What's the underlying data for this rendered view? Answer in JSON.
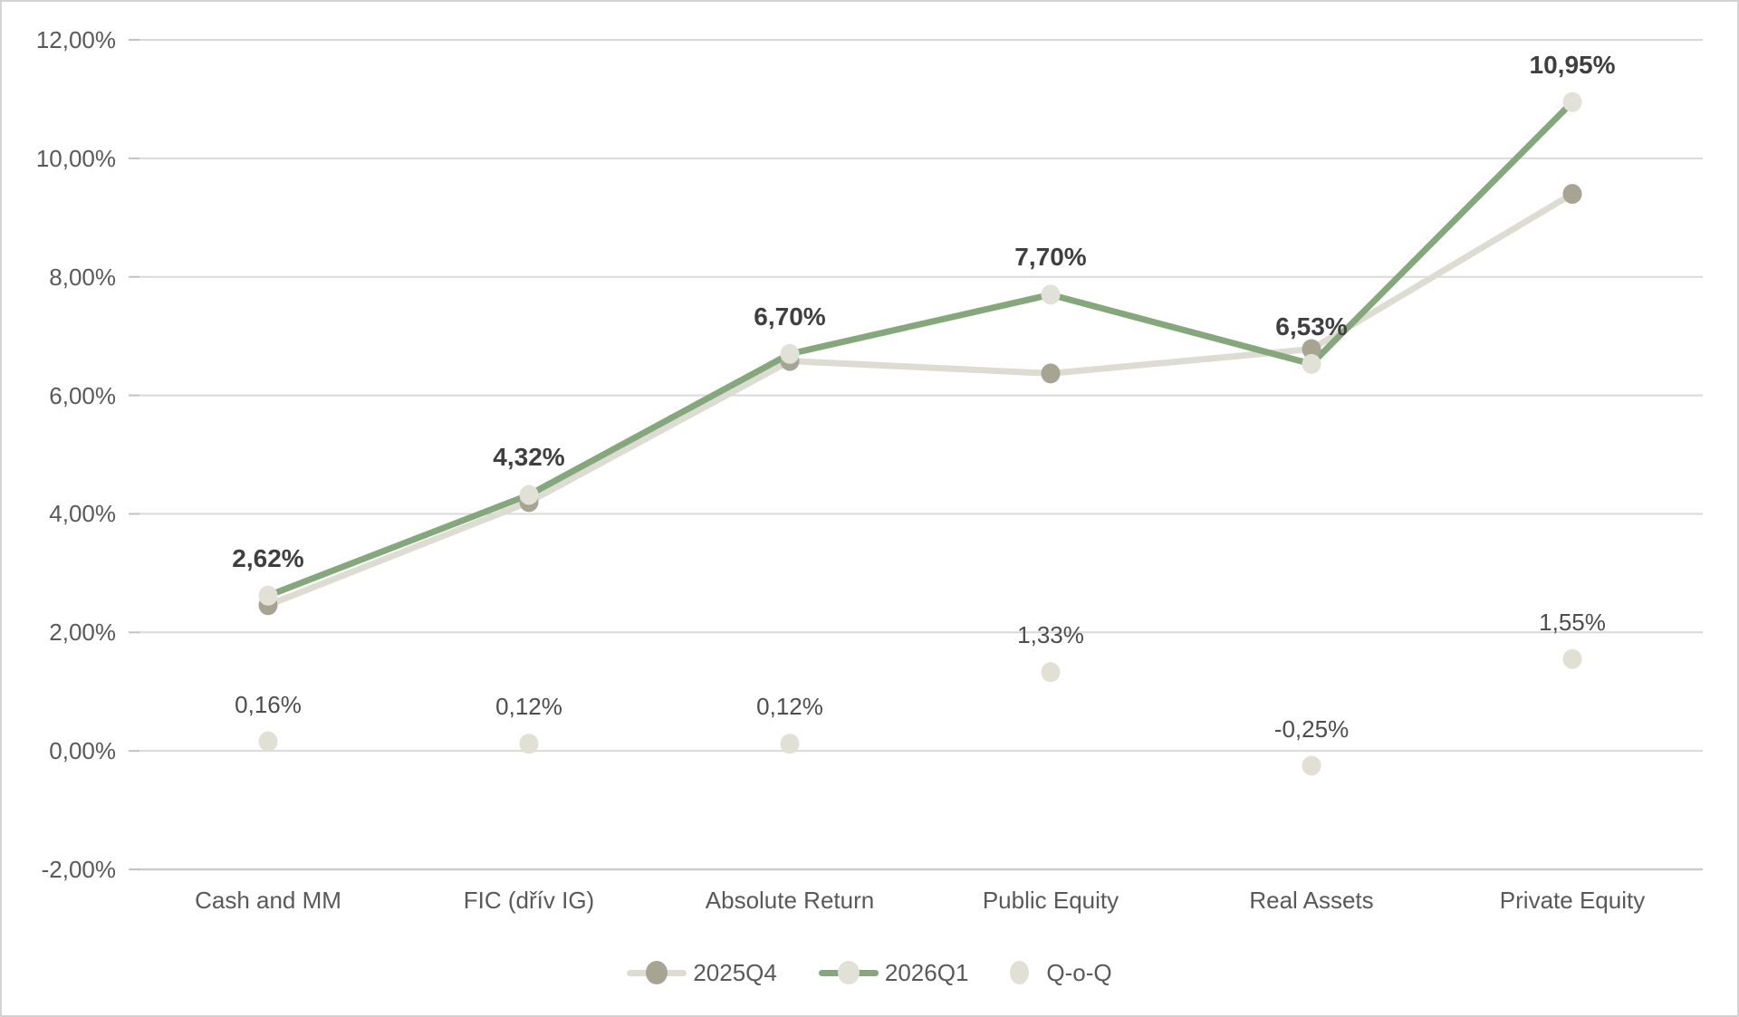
{
  "chart_data": {
    "type": "line",
    "categories": [
      "Cash and MM",
      "FIC (dřív IG)",
      "Absolute Return",
      "Public Equity",
      "Real Assets",
      "Private Equity"
    ],
    "series": [
      {
        "name": "2025Q4",
        "values": [
          2.46,
          4.2,
          6.58,
          6.37,
          6.78,
          9.4
        ],
        "line_color": "#dcdcd2",
        "marker_color": "#a8a494",
        "data_labels": null
      },
      {
        "name": "2026Q1",
        "values": [
          2.62,
          4.32,
          6.7,
          7.7,
          6.53,
          10.95
        ],
        "line_color": "#84a77b",
        "marker_color": "#e1e1d7",
        "data_labels": [
          "2,62%",
          "4,32%",
          "6,70%",
          "7,70%",
          "6,53%",
          "10,95%"
        ]
      },
      {
        "name": "Q-o-Q",
        "values": [
          0.16,
          0.12,
          0.12,
          1.33,
          -0.25,
          1.55
        ],
        "line_color": null,
        "marker_color": "#e0e0d4",
        "data_labels": [
          "0,16%",
          "0,12%",
          "0,12%",
          "1,33%",
          "-0,25%",
          "1,55%"
        ]
      }
    ],
    "yticks": [
      {
        "value": 12,
        "label": "12,00%"
      },
      {
        "value": 10,
        "label": "10,00%"
      },
      {
        "value": 8,
        "label": "8,00%"
      },
      {
        "value": 6,
        "label": "6,00%"
      },
      {
        "value": 4,
        "label": "4,00%"
      },
      {
        "value": 2,
        "label": "2,00%"
      },
      {
        "value": 0,
        "label": "0,00%"
      },
      {
        "value": -2,
        "label": "-2,00%"
      }
    ],
    "ylim": [
      -2,
      12
    ],
    "grid": true,
    "legend_position": "bottom",
    "title": "",
    "xlabel": "",
    "ylabel": ""
  },
  "colors": {
    "gridline": "#d9d9d9",
    "axis_line": "#cccccc",
    "tick_mark": "#c2c2c2",
    "tick_label_text": "#595959",
    "data_label_text": "#3f3f3f",
    "qoq_label_text": "#4d4d4d",
    "legend_text": "#595959",
    "border": "#d3d3d3",
    "background": "#ffffff"
  }
}
